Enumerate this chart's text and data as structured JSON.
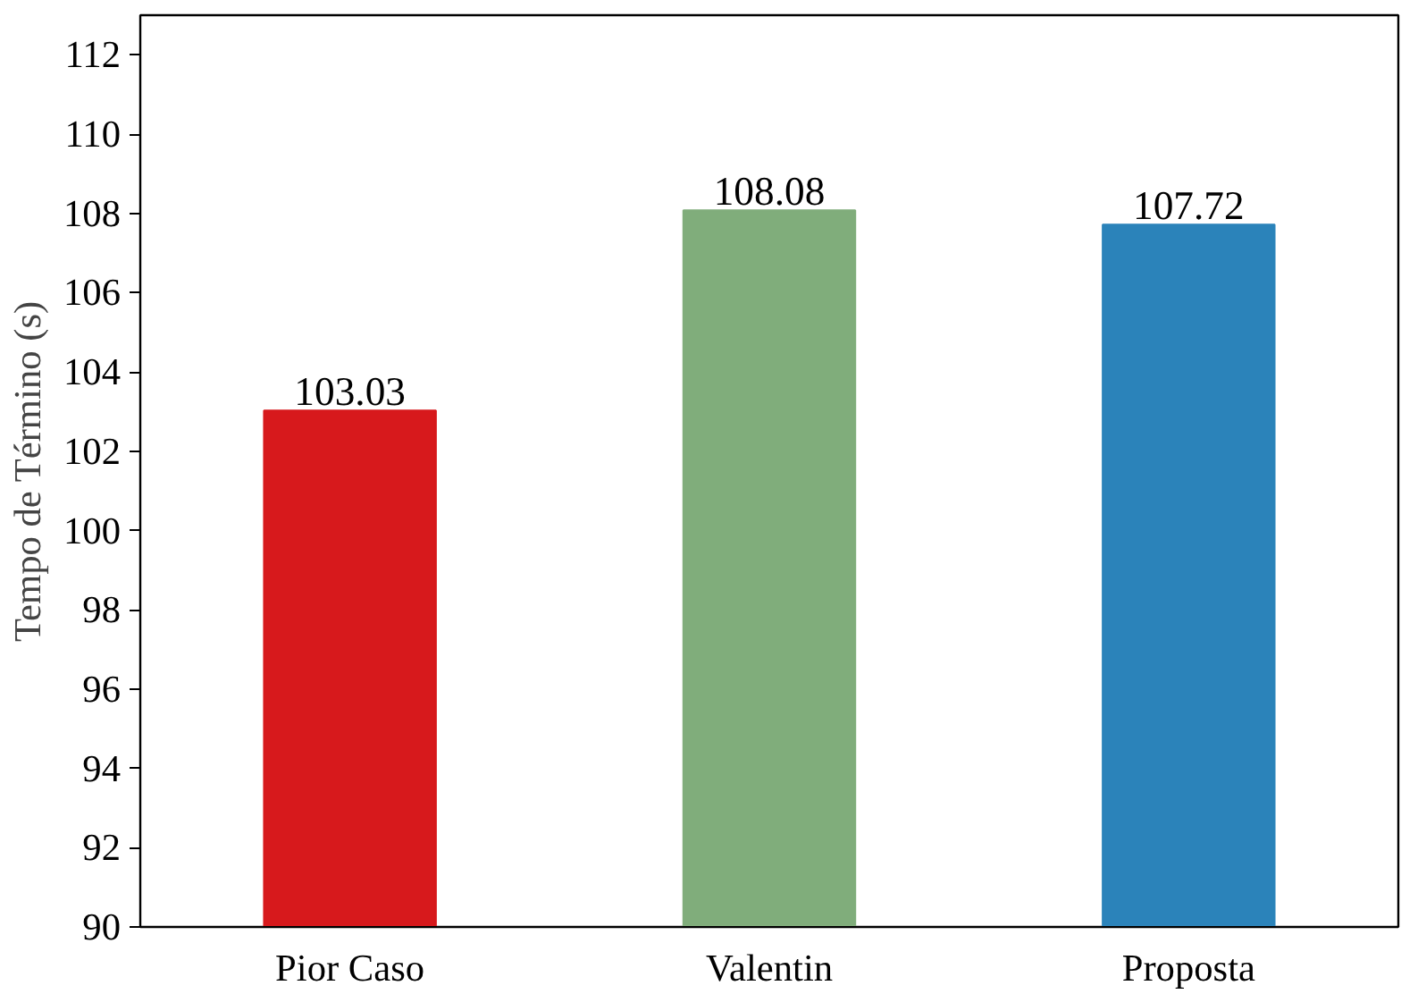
{
  "chart_data": {
    "type": "bar",
    "ylabel": "Tempo de Término (s)",
    "categories": [
      "Pior Caso",
      "Valentin",
      "Proposta"
    ],
    "values": [
      103.03,
      108.08,
      107.72
    ],
    "colors": [
      "#d7191c",
      "#80ad7b",
      "#2b83ba"
    ],
    "ylim": [
      90,
      113
    ],
    "yticks": [
      90,
      92,
      94,
      96,
      98,
      100,
      102,
      104,
      106,
      108,
      110,
      112
    ],
    "grid": false,
    "data_labels": true
  }
}
